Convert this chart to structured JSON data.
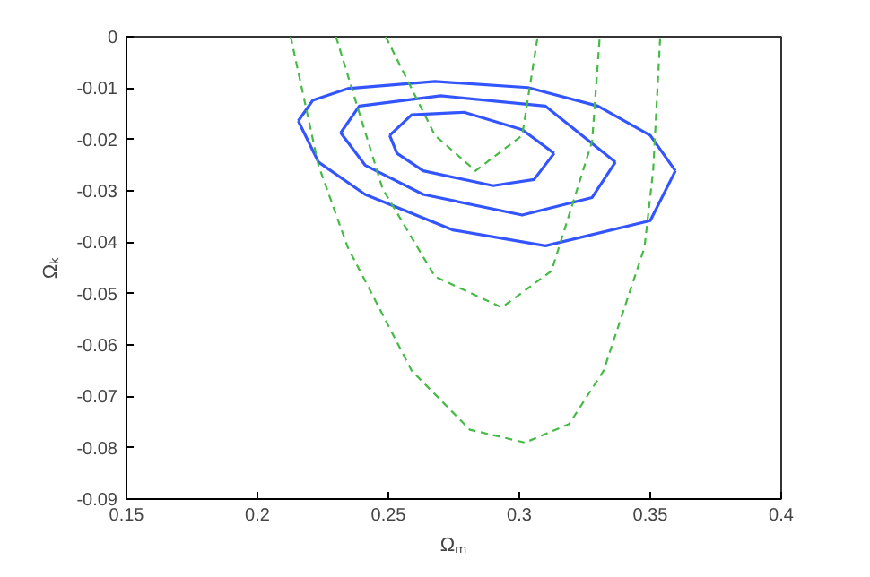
{
  "chart_data": {
    "type": "line",
    "xlabel": "Ωₘ",
    "ylabel": "Ωₖ",
    "xlim": [
      0.15,
      0.4
    ],
    "ylim": [
      -0.09,
      0
    ],
    "xticks": [
      0.15,
      0.2,
      0.25,
      0.3,
      0.35,
      0.4
    ],
    "yticks": [
      -0.09,
      -0.08,
      -0.07,
      -0.06,
      -0.05,
      -0.04,
      -0.03,
      -0.02,
      -0.01,
      0
    ],
    "grid": false,
    "marker": "none",
    "series": [
      {
        "color": "#3355ff",
        "line_style": "solid",
        "x": [
          0.2505,
          0.2589,
          0.2789,
          0.3011,
          0.3133
        ],
        "values": [
          -0.0192,
          -0.0152,
          -0.0147,
          -0.0181,
          -0.0227
        ]
      },
      {
        "color": "#3355ff",
        "line_style": "solid",
        "x": [
          0.2505,
          0.2533,
          0.2633,
          0.29,
          0.3056,
          0.3133
        ],
        "values": [
          -0.0192,
          -0.0227,
          -0.0261,
          -0.029,
          -0.0278,
          -0.0227
        ]
      },
      {
        "color": "#3355ff",
        "line_style": "solid",
        "x": [
          0.2318,
          0.2389,
          0.27,
          0.31,
          0.3367
        ],
        "values": [
          -0.0187,
          -0.0135,
          -0.0115,
          -0.0135,
          -0.0244
        ]
      },
      {
        "color": "#3355ff",
        "line_style": "solid",
        "x": [
          0.2318,
          0.2411,
          0.2633,
          0.3011,
          0.3278,
          0.3367
        ],
        "values": [
          -0.0187,
          -0.025,
          -0.0307,
          -0.0347,
          -0.0313,
          -0.0244
        ]
      },
      {
        "color": "#3355ff",
        "line_style": "solid",
        "x": [
          0.2156,
          0.2211,
          0.2344,
          0.2678,
          0.3033,
          0.33,
          0.35,
          0.3596
        ],
        "values": [
          -0.0164,
          -0.0124,
          -0.0101,
          -0.0087,
          -0.0099,
          -0.0135,
          -0.0192,
          -0.0261
        ]
      },
      {
        "color": "#3355ff",
        "line_style": "solid",
        "x": [
          0.2156,
          0.2233,
          0.2411,
          0.2745,
          0.31,
          0.35,
          0.3596
        ],
        "values": [
          -0.0164,
          -0.0244,
          -0.0307,
          -0.0376,
          -0.0407,
          -0.0358,
          -0.0261
        ]
      },
      {
        "color": "#44bb44",
        "line_style": "dashed",
        "x": [
          0.249,
          0.2678,
          0.2833,
          0.3011,
          0.307
        ],
        "values": [
          0,
          -0.0192,
          -0.0261,
          -0.0192,
          0
        ]
      },
      {
        "color": "#44bb44",
        "line_style": "dashed",
        "x": [
          0.23,
          0.2478,
          0.2678,
          0.2933,
          0.3123,
          0.3278,
          0.3307
        ],
        "values": [
          0,
          -0.0296,
          -0.0467,
          -0.0527,
          -0.0456,
          -0.0204,
          0
        ]
      },
      {
        "color": "#44bb44",
        "line_style": "dashed",
        "x": [
          0.2127,
          0.2233,
          0.2345,
          0.2589,
          0.2811,
          0.3022,
          0.319,
          0.3322,
          0.3478,
          0.3511,
          0.3538
        ],
        "values": [
          0,
          -0.025,
          -0.041,
          -0.065,
          -0.0765,
          -0.079,
          -0.0754,
          -0.065,
          -0.041,
          -0.0261,
          0
        ]
      }
    ]
  }
}
